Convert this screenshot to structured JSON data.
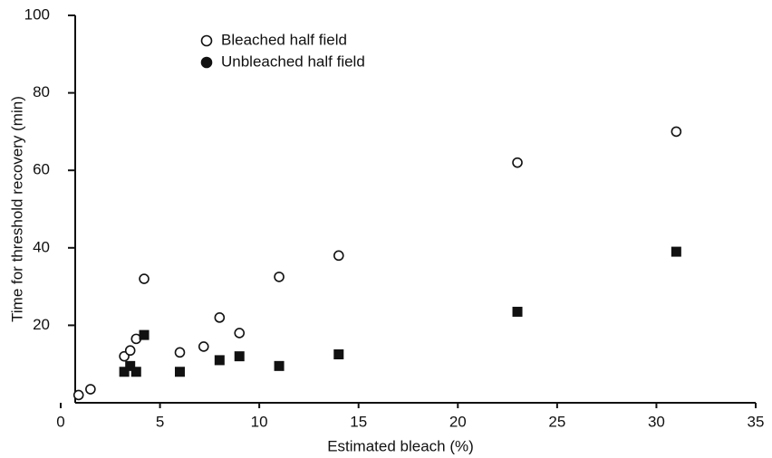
{
  "chart_data": {
    "type": "scatter",
    "x_label": "Estimated bleach (%)",
    "y_label": "Time for threshold recovery (min)",
    "xlim": [
      0,
      35
    ],
    "ylim": [
      0,
      100
    ],
    "xticks": [
      0,
      5,
      10,
      15,
      20,
      25,
      30,
      35
    ],
    "yticks": [
      20,
      40,
      60,
      80,
      100
    ],
    "series": [
      {
        "name": "Bleached half field",
        "color": "#111111",
        "marker": "circle-open",
        "x": [
          0.9,
          1.5,
          3.2,
          3.5,
          3.8,
          4.2,
          6,
          7.2,
          8,
          9,
          11,
          14,
          23,
          31
        ],
        "values": [
          2,
          3.5,
          12,
          13.5,
          16.5,
          32,
          13,
          14.5,
          22,
          18,
          32.5,
          38,
          62,
          70
        ]
      },
      {
        "name": "Unbleached half field",
        "color": "#111111",
        "marker": "square-filled",
        "x": [
          3.2,
          3.5,
          3.8,
          4.2,
          6,
          8,
          9,
          11,
          14,
          23,
          31
        ],
        "values": [
          8,
          9.5,
          8,
          17.5,
          8,
          11,
          12,
          9.5,
          12.5,
          23.5,
          39
        ]
      }
    ]
  }
}
